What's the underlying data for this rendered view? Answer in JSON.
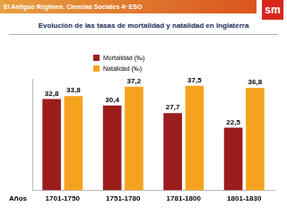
{
  "header": {
    "text": "El Antiguo Régimen. Ciencias Sociales 4º ESO",
    "logo": "sm"
  },
  "chart_data": {
    "type": "bar",
    "title": "Evolución de las tasas de mortalidad y natalidad en Inglaterra",
    "xlabel": "Años",
    "categories": [
      "1701-1750",
      "1751-1780",
      "1781-1800",
      "1801-1830"
    ],
    "series": [
      {
        "name": "Mortalidad (‰)",
        "color": "#9b1c1c",
        "values": [
          32.8,
          30.4,
          27.7,
          22.5
        ],
        "value_labels": [
          "32,8",
          "30,4",
          "27,7",
          "22,5"
        ]
      },
      {
        "name": "Natalidad (‰)",
        "color": "#f5a31f",
        "values": [
          33.8,
          37.2,
          37.5,
          36.8
        ],
        "value_labels": [
          "33,8",
          "37,2",
          "37,5",
          "36,8"
        ]
      }
    ],
    "ylim": [
      0,
      40
    ],
    "grid": false,
    "data_labels": true,
    "tick_labels": "x"
  }
}
